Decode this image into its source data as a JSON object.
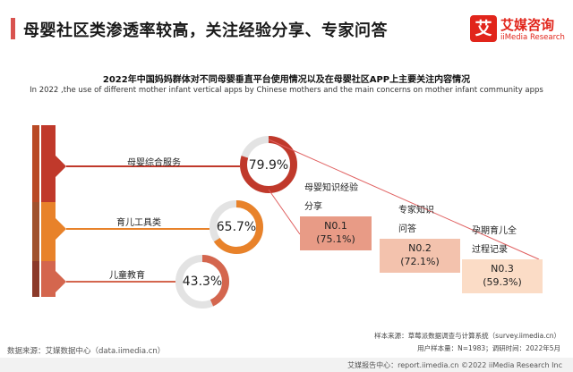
{
  "page": {
    "title": "母婴社区类渗透率较高，关注经验分享、专家问答"
  },
  "logo": {
    "mark": "艾",
    "name_cn": "艾媒咨询",
    "name_en": "iiMedia Research"
  },
  "colors": {
    "accent": "#d9534f",
    "brand_red": "#e1251b",
    "row1": "#c0392b",
    "row2": "#e8822a",
    "row3": "#d4664e",
    "stripe1": "#b94a25",
    "stripe2": "#a0522d",
    "stripe3": "#8b3a2a",
    "ring_track": "#e3e3e3",
    "rank1": "#e89b86",
    "rank2": "#f3c2ad",
    "rank3": "#fbdcc6",
    "connector": "#e06060"
  },
  "chart_data": [
    {
      "type": "donut",
      "title": "2022年中国妈妈群体对不同母婴垂直平台使用情况以及在母婴社区APP上主要关注内容情况",
      "subtitle": "In 2022 ,the use of different mother infant vertical apps by Chinese mothers and the main concerns on mother infant community apps",
      "categories": [
        "母婴综合服务",
        "育儿工具类",
        "儿童教育"
      ],
      "values": [
        79.9,
        65.7,
        43.3
      ],
      "value_labels": [
        "79.9%",
        "65.7%",
        "43.3%"
      ],
      "unit": "%"
    },
    {
      "type": "table",
      "categories": [
        "母婴知识经验分享",
        "专家知识问答",
        "孕期育儿全过程记录"
      ],
      "label_lines": [
        [
          "母婴知识经验",
          "分享"
        ],
        [
          "专家知识",
          "问答"
        ],
        [
          "孕期育儿全",
          "过程记录"
        ]
      ],
      "ranks": [
        "N0.1",
        "N0.2",
        "N0.3"
      ],
      "values": [
        75.1,
        72.1,
        59.3
      ],
      "value_labels": [
        "(75.1%)",
        "(72.1%)",
        "(59.3%)"
      ],
      "unit": "%"
    }
  ],
  "footer": {
    "sample_source": "样本来源：草莓派数据调查与计算系统（survey.iimedia.cn）",
    "sample_size": "用户样本量：N=1983；调研时间：2022年5月",
    "data_source": "数据来源：艾媒数据中心（data.iimedia.cn）",
    "report": "艾媒报告中心：report.iimedia.cn   ©2022  iiMedia Research  Inc"
  }
}
